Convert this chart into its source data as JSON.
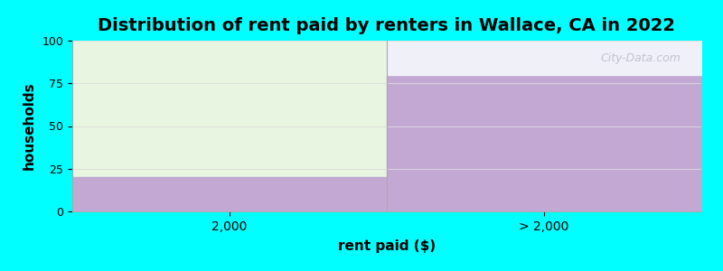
{
  "title": "Distribution of rent paid by renters in Wallace, CA in 2022",
  "xlabel": "rent paid ($)",
  "ylabel": "households",
  "categories": [
    "2,000",
    "> 2,000"
  ],
  "values": [
    20,
    80
  ],
  "ylim": [
    0,
    100
  ],
  "bar_color": "#c4a8d4",
  "bg_fill_color_left": "#e8f5e0",
  "bg_fill_color_right": "#f0f0f8",
  "background_color": "#00ffff",
  "plot_bg_color": "#ffffff",
  "title_fontsize": 14,
  "axis_label_fontsize": 11,
  "watermark": "City-Data.com",
  "yticks": [
    0,
    25,
    50,
    75,
    100
  ],
  "figsize": [
    8.0,
    3.0
  ],
  "dpi": 100
}
